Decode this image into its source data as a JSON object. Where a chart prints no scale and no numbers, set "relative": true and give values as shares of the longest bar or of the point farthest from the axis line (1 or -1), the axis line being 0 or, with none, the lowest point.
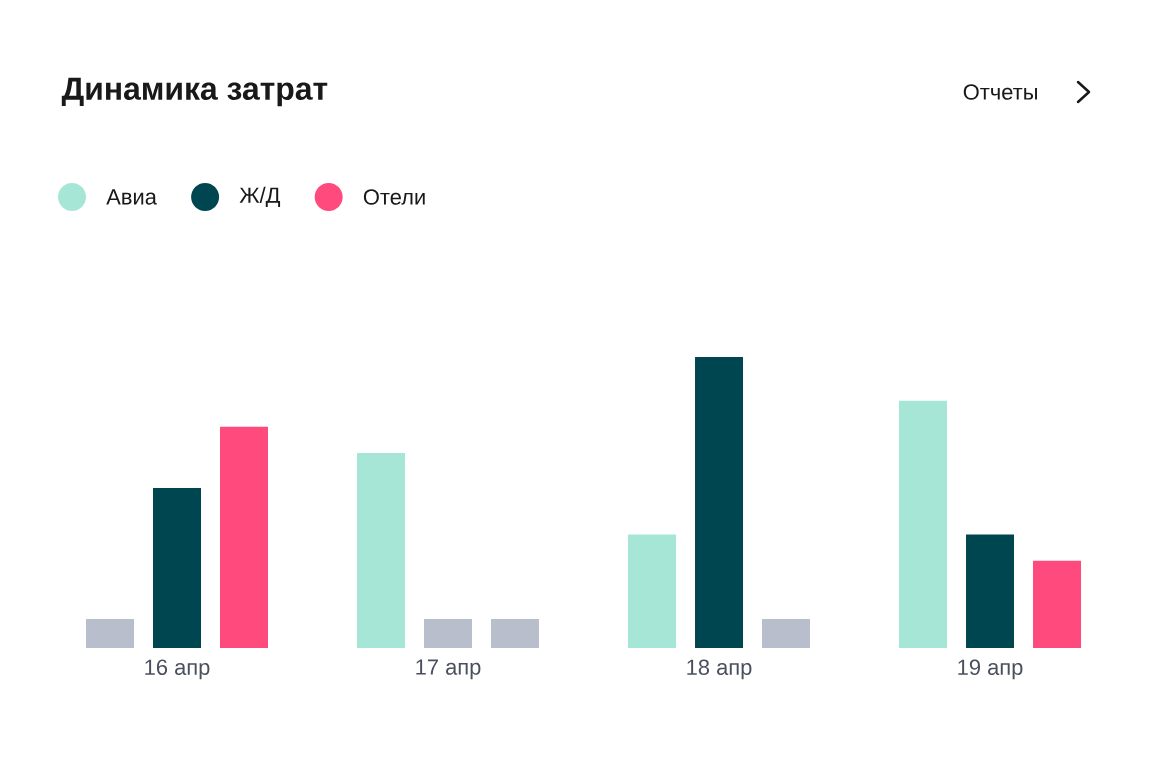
{
  "chart_data": {
    "type": "bar",
    "title": "Динамика затрат",
    "annotations": [
      "Отчеты"
    ],
    "relative": true,
    "legend": "top left",
    "categories": [
      "16 апр",
      "17 апр",
      "18 апр",
      "19 апр"
    ],
    "series": [
      {
        "name": "Авиа",
        "color": "#a6e6d6",
        "colors": [
          "#b8becb",
          "#a6e6d6",
          "#a6e6d6",
          "#a6e6d6"
        ],
        "values": [
          0.1,
          0.67,
          0.39,
          0.85
        ]
      },
      {
        "name": "Ж/Д",
        "color": "#004650",
        "colors": [
          "#004650",
          "#b8becb",
          "#004650",
          "#004650"
        ],
        "values": [
          0.55,
          0.1,
          1,
          0.39
        ]
      },
      {
        "name": "Отели",
        "color": "#ff4a7d",
        "colors": [
          "#ff4a7d",
          "#b8becb",
          "#b8becb",
          "#ff4a7d"
        ],
        "values": [
          0.76,
          0.1,
          0.1,
          0.3
        ]
      }
    ]
  }
}
